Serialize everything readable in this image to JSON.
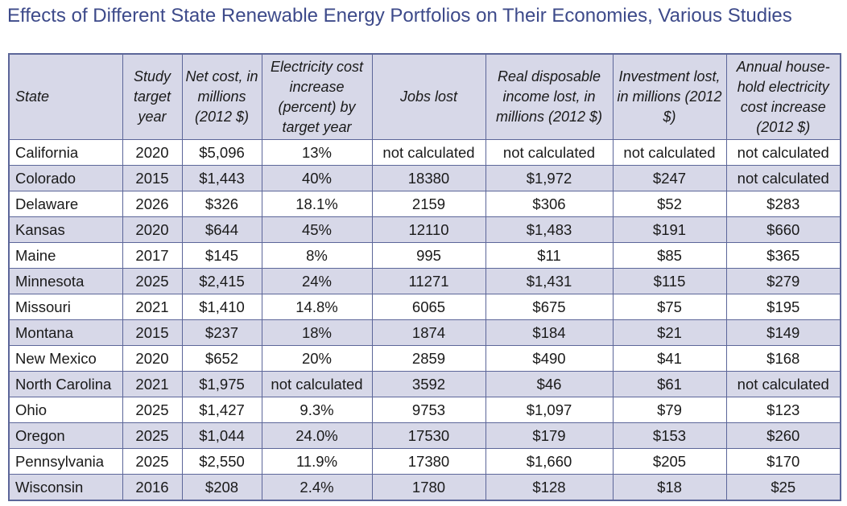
{
  "title": "Effects of Different State Renewable Energy Portfolios on Their Economies, Various Studies",
  "colors": {
    "title": "#3d4a8a",
    "border": "#5c6699",
    "band": "#d7d8e8"
  },
  "columns": [
    "State",
    "Study target year",
    "Net cost, in millions (2012 $)",
    "Electricity cost increase (percent) by target year",
    "Jobs lost",
    "Real disposable income lost, in millions (2012 $)",
    "Investment lost, in millions (2012 $)",
    "Annual house-hold electricity cost increase (2012 $)"
  ],
  "rows": [
    [
      "California",
      "2020",
      "$5,096",
      "13%",
      "not calculated",
      "not calculated",
      "not calculated",
      "not calculated"
    ],
    [
      "Colorado",
      "2015",
      "$1,443",
      "40%",
      "18380",
      "$1,972",
      "$247",
      "not calculated"
    ],
    [
      "Delaware",
      "2026",
      "$326",
      "18.1%",
      "2159",
      "$306",
      "$52",
      "$283"
    ],
    [
      "Kansas",
      "2020",
      "$644",
      "45%",
      "12110",
      "$1,483",
      "$191",
      "$660"
    ],
    [
      "Maine",
      "2017",
      "$145",
      "8%",
      "995",
      "$11",
      "$85",
      "$365"
    ],
    [
      "Minnesota",
      "2025",
      "$2,415",
      "24%",
      "11271",
      "$1,431",
      "$115",
      "$279"
    ],
    [
      "Missouri",
      "2021",
      "$1,410",
      "14.8%",
      "6065",
      "$675",
      "$75",
      "$195"
    ],
    [
      "Montana",
      "2015",
      "$237",
      "18%",
      "1874",
      "$184",
      "$21",
      "$149"
    ],
    [
      "New Mexico",
      "2020",
      "$652",
      "20%",
      "2859",
      "$490",
      "$41",
      "$168"
    ],
    [
      "North Carolina",
      "2021",
      "$1,975",
      "not calculated",
      "3592",
      "$46",
      "$61",
      "not calculated"
    ],
    [
      "Ohio",
      "2025",
      "$1,427",
      "9.3%",
      "9753",
      "$1,097",
      "$79",
      "$123"
    ],
    [
      "Oregon",
      "2025",
      "$1,044",
      "24.0%",
      "17530",
      "$179",
      "$153",
      "$260"
    ],
    [
      "Pennsylvania",
      "2025",
      "$2,550",
      "11.9%",
      "17380",
      "$1,660",
      "$205",
      "$170"
    ],
    [
      "Wisconsin",
      "2016",
      "$208",
      "2.4%",
      "1780",
      "$128",
      "$18",
      "$25"
    ]
  ]
}
